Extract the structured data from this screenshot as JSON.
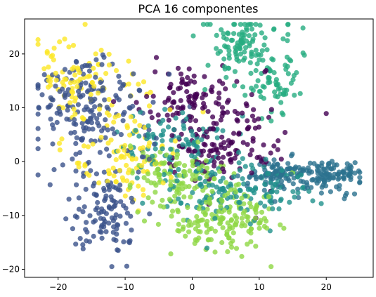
{
  "chart_data": {
    "type": "scatter",
    "title": "PCA 16 componentes",
    "xlabel": "",
    "ylabel": "",
    "xlim": [
      -25,
      27
    ],
    "ylim": [
      -21.5,
      26.5
    ],
    "xticks": [
      -20,
      -10,
      0,
      10,
      20
    ],
    "xtick_labels": [
      "−20",
      "−10",
      "0",
      "10",
      "20"
    ],
    "yticks": [
      -20,
      -10,
      0,
      10,
      20
    ],
    "ytick_labels": [
      "−20",
      "−10",
      "0",
      "10",
      "20"
    ],
    "grid": false,
    "legend": "none",
    "colormap": "viridis",
    "point_opacity": 0.8,
    "note_points": "Approximately 1800 points in 7 overlapping color groups; cluster centers and spreads estimated from the image.",
    "series": [
      {
        "color": "#440154",
        "center": [
          6.0,
          7.0
        ],
        "spread": [
          5.5,
          5.0
        ],
        "count": 230,
        "extra": [
          [
            -1,
            12
          ],
          [
            4,
            2
          ]
        ]
      },
      {
        "color": "#3b528b",
        "center": [
          -13.0,
          4.0
        ],
        "spread": [
          5.0,
          6.0
        ],
        "count": 300,
        "extra": [
          [
            -17,
            12
          ],
          [
            -13,
            -10
          ]
        ]
      },
      {
        "color": "#21918c",
        "center": [
          3.0,
          -5.0
        ],
        "spread": [
          6.0,
          4.0
        ],
        "count": 230,
        "extra": [
          [
            10,
            -6
          ],
          [
            -3,
            4
          ]
        ]
      },
      {
        "color": "#2c728e",
        "center": [
          18.0,
          -3.5
        ],
        "spread": [
          3.5,
          2.2
        ],
        "count": 200,
        "extra": [
          [
            13,
            -2
          ],
          [
            22,
            -2
          ]
        ]
      },
      {
        "color": "#27ad81",
        "center": [
          10.0,
          18.0
        ],
        "spread": [
          3.5,
          4.5
        ],
        "count": 170,
        "extra": [
          [
            12,
            14
          ],
          [
            7,
            22
          ]
        ]
      },
      {
        "color": "#8fd744",
        "center": [
          2.0,
          -8.0
        ],
        "spread": [
          5.0,
          4.0
        ],
        "count": 270,
        "extra": [
          [
            -2,
            -2
          ],
          [
            6,
            -11
          ]
        ]
      },
      {
        "color": "#fde725",
        "center": [
          -12.0,
          6.0
        ],
        "spread": [
          5.0,
          6.0
        ],
        "count": 190,
        "extra": [
          [
            -18,
            15
          ],
          [
            -9,
            0
          ]
        ]
      }
    ]
  }
}
